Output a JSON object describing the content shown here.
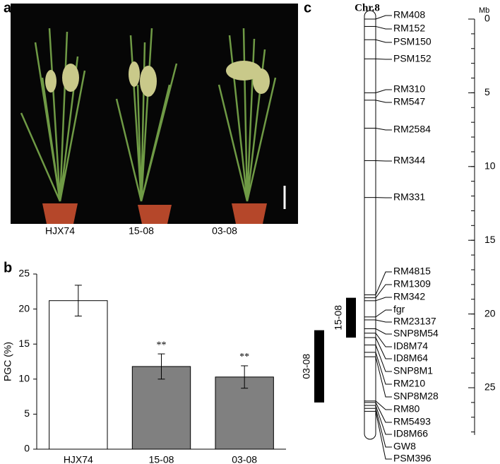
{
  "panel_labels": [
    "a",
    "b",
    "c"
  ],
  "photo": {
    "labels": [
      "HJX74",
      "15-08",
      "03-08"
    ]
  },
  "chart_data": {
    "type": "bar",
    "y_label": "PGC (%)",
    "categories": [
      "HJX74",
      "15-08",
      "03-08"
    ],
    "values": [
      21.2,
      11.8,
      10.3
    ],
    "errors": [
      2.2,
      1.8,
      1.6
    ],
    "colors": [
      "#ffffff",
      "#808080",
      "#808080"
    ],
    "annotations": [
      {
        "category": 1,
        "text": "**"
      },
      {
        "category": 2,
        "text": "**"
      }
    ],
    "ylim": [
      0,
      25
    ],
    "yticks": [
      0,
      5,
      10,
      15,
      20,
      25
    ]
  },
  "map": {
    "title": "Chr.8",
    "unit": "Mb",
    "lim": [
      0,
      28.2
    ],
    "ticks": [
      0,
      5,
      10,
      15,
      20,
      25
    ],
    "markers": [
      {
        "label": "RM408",
        "position": 0
      },
      {
        "label": "RM152",
        "position": 0.5
      },
      {
        "label": "PSM150",
        "position": 1.4
      },
      {
        "label": "PSM152",
        "position": 2.7
      },
      {
        "label": "RM310",
        "position": 5.0
      },
      {
        "label": "RM547",
        "position": 5.5
      },
      {
        "label": "RM2584",
        "position": 7.4
      },
      {
        "label": "RM344",
        "position": 9.6
      },
      {
        "label": "RM331",
        "position": 12.1
      },
      {
        "label": "RM4815",
        "position": 18.7
      },
      {
        "label": "RM1309",
        "position": 18.9
      },
      {
        "label": "RM342",
        "position": 19.1
      },
      {
        "label": "fgr",
        "position": 20.2
      },
      {
        "label": "RM23137",
        "position": 20.4
      },
      {
        "label": "SNP8M54",
        "position": 21.0
      },
      {
        "label": "ID8M74",
        "position": 21.3
      },
      {
        "label": "ID8M64",
        "position": 21.6
      },
      {
        "label": "SNP8M1",
        "position": 22.1
      },
      {
        "label": "RM210",
        "position": 22.6
      },
      {
        "label": "SNP8M28",
        "position": 22.9
      },
      {
        "label": "RM80",
        "position": 25.9
      },
      {
        "label": "RM5493",
        "position": 26.0
      },
      {
        "label": "ID8M66",
        "position": 26.2
      },
      {
        "label": "GW8",
        "position": 26.4
      },
      {
        "label": "PSM396",
        "position": 26.6
      }
    ],
    "introgressions": [
      {
        "label": "15-08",
        "start": 18.9,
        "end": 21.6
      },
      {
        "label": "03-08",
        "start": 21.1,
        "end": 26.0
      }
    ]
  }
}
